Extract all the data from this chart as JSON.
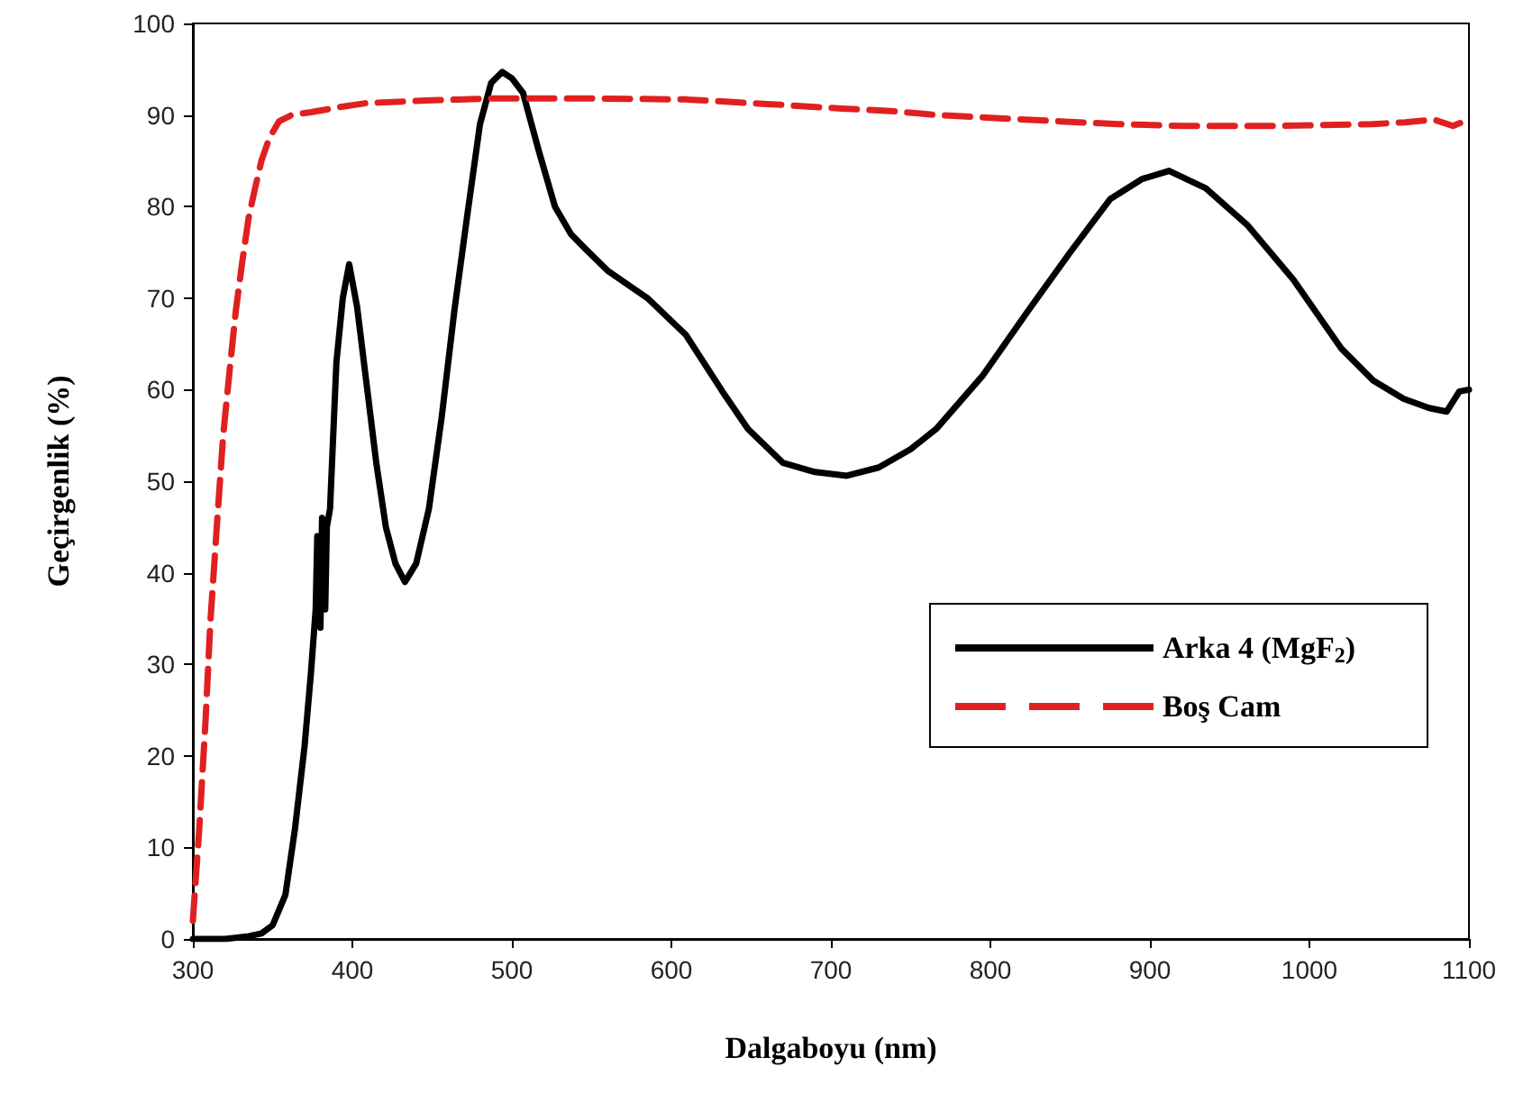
{
  "chart_data": {
    "type": "line",
    "xlabel": "Dalgaboyu (nm)",
    "ylabel": "Geçirgenlik (%)",
    "xlim": [
      300,
      1100
    ],
    "xticks": [
      300,
      400,
      500,
      600,
      700,
      800,
      900,
      1000,
      1100
    ],
    "ylim": [
      0,
      100
    ],
    "yticks": [
      0,
      10,
      20,
      30,
      40,
      50,
      60,
      70,
      80,
      90,
      100
    ],
    "grid": false,
    "legend": "right",
    "marker": "none",
    "series": [
      {
        "name": "Arka 4 (MgF$_{2}$)",
        "color": "#000000",
        "line_style": "solid",
        "x": [
          300,
          320,
          335,
          343,
          350,
          358,
          364,
          370,
          374,
          377,
          378,
          380,
          381,
          383,
          384,
          386,
          390,
          394,
          398,
          403,
          409,
          415,
          421,
          427,
          433,
          440,
          448,
          456,
          464,
          472,
          480,
          487,
          494,
          500,
          507,
          517,
          527,
          537,
          546,
          560,
          585,
          609,
          632,
          648,
          670,
          690,
          710,
          730,
          750,
          766,
          795,
          824,
          850,
          875,
          895,
          912,
          935,
          961,
          990,
          1020,
          1040,
          1059,
          1075,
          1086,
          1094,
          1100
        ],
        "values": [
          0,
          0,
          0.3,
          0.6,
          1.5,
          4.8,
          12,
          21,
          29,
          36,
          44,
          34,
          46,
          36,
          45,
          47,
          63,
          70,
          73.7,
          69,
          60.5,
          52,
          45,
          41,
          39,
          41,
          47,
          57,
          68.7,
          79,
          89,
          93.5,
          94.7,
          94,
          92.4,
          86,
          80,
          77,
          75.4,
          73,
          70,
          66,
          59.8,
          55.7,
          52,
          51,
          50.6,
          51.5,
          53.5,
          55.7,
          61.5,
          68.7,
          75,
          80.8,
          83,
          83.9,
          82,
          78,
          72,
          64.5,
          61,
          59,
          58,
          57.6,
          59.8,
          60
        ]
      },
      {
        "name": "Boş Cam",
        "color": "#e02020",
        "line_style": "dashed",
        "x": [
          300,
          304,
          308,
          311,
          315,
          319,
          323,
          327,
          331,
          335,
          339,
          343,
          348,
          354,
          362,
          374,
          390,
          409,
          450,
          487,
          550,
          609,
          660,
          707,
          740,
          766,
          800,
          844,
          880,
          922,
          980,
          1039,
          1060,
          1078,
          1090,
          1100
        ],
        "values": [
          2,
          12,
          24,
          34.7,
          45,
          55,
          62,
          68.7,
          74,
          78.8,
          82,
          85,
          87.5,
          89.3,
          90,
          90.3,
          90.8,
          91.3,
          91.6,
          91.8,
          91.8,
          91.7,
          91.2,
          90.7,
          90.4,
          90,
          89.7,
          89.3,
          89,
          88.8,
          88.8,
          89,
          89.2,
          89.5,
          88.8,
          89.5
        ]
      }
    ]
  }
}
